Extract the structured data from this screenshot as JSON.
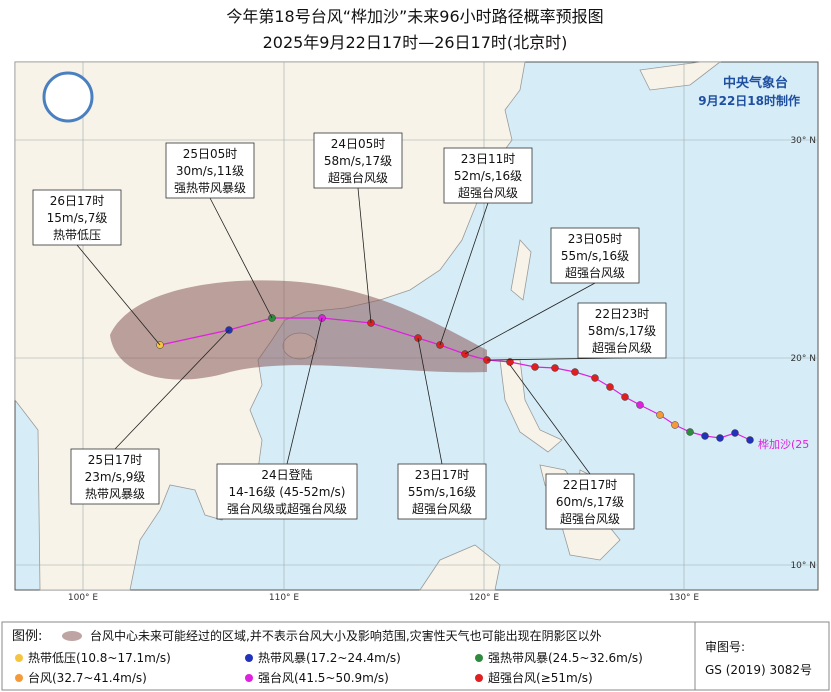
{
  "header": {
    "title": "今年第18号台风“桦加沙”未来96小时路径概率预报图",
    "subtitle": "2025年9月22日17时—26日17时(北京时)"
  },
  "agency": {
    "name": "中央气象台",
    "issued": "9月22日18时制作"
  },
  "axes": {
    "lon": [
      "100° E",
      "110° E",
      "120° E",
      "130° E"
    ],
    "lat": [
      "30° N",
      "20° N",
      "10° N"
    ]
  },
  "storm_label": "桦加沙(25",
  "callouts": [
    {
      "lines": [
        "26日17时",
        "15m/s,7级",
        "热带低压"
      ]
    },
    {
      "lines": [
        "25日05时",
        "30m/s,11级",
        "强热带风暴级"
      ]
    },
    {
      "lines": [
        "24日05时",
        "58m/s,17级",
        "超强台风级"
      ]
    },
    {
      "lines": [
        "23日11时",
        "52m/s,16级",
        "超强台风级"
      ]
    },
    {
      "lines": [
        "23日05时",
        "55m/s,16级",
        "超强台风级"
      ]
    },
    {
      "lines": [
        "22日23时",
        "58m/s,17级",
        "超强台风级"
      ]
    },
    {
      "lines": [
        "22日17时",
        "60m/s,17级",
        "超强台风级"
      ]
    },
    {
      "lines": [
        "23日17时",
        "55m/s,16级",
        "超强台风级"
      ]
    },
    {
      "lines": [
        "24日登陆",
        "14-16级 (45-52m/s)",
        "强台风级或超强台风级"
      ]
    },
    {
      "lines": [
        "25日17时",
        "23m/s,9级",
        "热带风暴级"
      ]
    }
  ],
  "legend": {
    "title": "图例:",
    "area": "台风中心未来可能经过的区域,并不表示台风大小及影响范围,灾害性天气也可能出现在阴影区以外",
    "items": [
      {
        "label": "热带低压(10.8~17.1m/s)",
        "color": "#f5c542"
      },
      {
        "label": "热带风暴(17.2~24.4m/s)",
        "color": "#2233bb"
      },
      {
        "label": "强热带风暴(24.5~32.6m/s)",
        "color": "#2e8b3e"
      },
      {
        "label": "台风(32.7~41.4m/s)",
        "color": "#f59a3a"
      },
      {
        "label": "强台风(41.5~50.9m/s)",
        "color": "#e020e0"
      },
      {
        "label": "超强台风(≥51m/s)",
        "color": "#e02020"
      }
    ]
  },
  "approval": {
    "label": "审图号:",
    "number": "GS (2019) 3082号"
  }
}
